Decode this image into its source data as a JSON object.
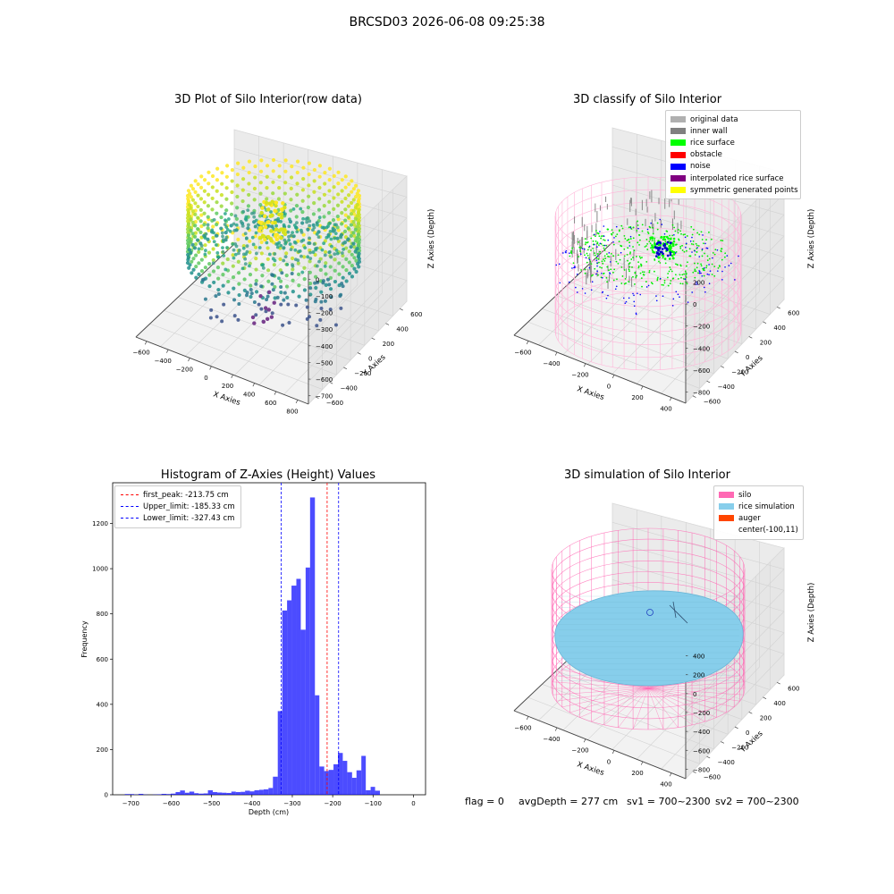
{
  "suptitle": "BRCSD03 2026-06-08 09:25:38",
  "footer": {
    "flag": "flag = 0",
    "avgDepth": "avgDepth = 277 cm",
    "sv1": "sv1 = 700~2300",
    "sv2": "sv2 = 700~2300"
  },
  "chart_data": [
    {
      "type": "scatter",
      "projection": "3d",
      "title": "3D Plot of Silo Interior(row data)",
      "xlabel": "X Axies",
      "ylabel": "Y Axies",
      "zlabel": "Z Axies (Depth)",
      "xticks": [
        "−600",
        "−400",
        "−200",
        "0",
        "200",
        "400",
        "600",
        "800"
      ],
      "yticks": [
        "−600",
        "−400",
        "−200",
        "0",
        "200",
        "400",
        "600"
      ],
      "zticks": [
        "0",
        "−100",
        "−200",
        "−300",
        "−400",
        "−500",
        "−600",
        "−700"
      ],
      "colormap": "viridis"
    },
    {
      "type": "scatter",
      "projection": "3d",
      "title": "3D classify of Silo Interior",
      "xlabel": "X Axies",
      "ylabel": "Y Axies",
      "zlabel": "Z Axies (Depth)",
      "xticks": [
        "−600",
        "−400",
        "−200",
        "0",
        "200",
        "400"
      ],
      "yticks": [
        "−600",
        "−400",
        "−200",
        "0",
        "200",
        "400",
        "600"
      ],
      "zticks": [
        "200",
        "0",
        "−200",
        "−400",
        "−600",
        "−800"
      ],
      "legend": [
        {
          "label": "original data",
          "color": "#b0b0b0"
        },
        {
          "label": "inner wall",
          "color": "#808080"
        },
        {
          "label": "rice surface",
          "color": "#00ff00"
        },
        {
          "label": "obstacle",
          "color": "#ff0000"
        },
        {
          "label": "noise",
          "color": "#0000ff"
        },
        {
          "label": "interpolated rice surface",
          "color": "#800080"
        },
        {
          "label": "symmetric generated points",
          "color": "#ffff00"
        }
      ],
      "legend_position": "upper right",
      "wireframe_color": "#ffb6d9"
    },
    {
      "type": "bar",
      "title": "Histogram of Z-Axies (Height) Values",
      "xlabel": "Depth (cm)",
      "ylabel": "Frequency",
      "xlim": [
        -745,
        30
      ],
      "ylim": [
        0,
        1380
      ],
      "xticks": [
        -700,
        -600,
        -500,
        -400,
        -300,
        -200,
        -100,
        0
      ],
      "xtick_labels": [
        "−700",
        "−600",
        "−500",
        "−400",
        "−300",
        "−200",
        "−100",
        "0"
      ],
      "yticks": [
        0,
        200,
        400,
        600,
        800,
        1000,
        1200
      ],
      "bar_color": "#0000ff",
      "bins": [
        {
          "x0": -715,
          "x1": -704,
          "count": 3
        },
        {
          "x0": -704,
          "x1": -692,
          "count": 3
        },
        {
          "x0": -692,
          "x1": -681,
          "count": 1
        },
        {
          "x0": -681,
          "x1": -669,
          "count": 4
        },
        {
          "x0": -669,
          "x1": -658,
          "count": 1
        },
        {
          "x0": -658,
          "x1": -646,
          "count": 0
        },
        {
          "x0": -646,
          "x1": -635,
          "count": 1
        },
        {
          "x0": -635,
          "x1": -624,
          "count": 2
        },
        {
          "x0": -624,
          "x1": -612,
          "count": 4
        },
        {
          "x0": -612,
          "x1": -601,
          "count": 3
        },
        {
          "x0": -601,
          "x1": -589,
          "count": 5
        },
        {
          "x0": -589,
          "x1": -578,
          "count": 12
        },
        {
          "x0": -578,
          "x1": -566,
          "count": 19
        },
        {
          "x0": -566,
          "x1": -555,
          "count": 9
        },
        {
          "x0": -555,
          "x1": -543,
          "count": 14
        },
        {
          "x0": -543,
          "x1": -532,
          "count": 7
        },
        {
          "x0": -532,
          "x1": -520,
          "count": 5
        },
        {
          "x0": -520,
          "x1": -509,
          "count": 6
        },
        {
          "x0": -509,
          "x1": -497,
          "count": 20
        },
        {
          "x0": -497,
          "x1": -486,
          "count": 12
        },
        {
          "x0": -486,
          "x1": -474,
          "count": 10
        },
        {
          "x0": -474,
          "x1": -463,
          "count": 9
        },
        {
          "x0": -463,
          "x1": -451,
          "count": 8
        },
        {
          "x0": -451,
          "x1": -440,
          "count": 14
        },
        {
          "x0": -440,
          "x1": -428,
          "count": 12
        },
        {
          "x0": -428,
          "x1": -417,
          "count": 13
        },
        {
          "x0": -417,
          "x1": -405,
          "count": 18
        },
        {
          "x0": -405,
          "x1": -394,
          "count": 15
        },
        {
          "x0": -394,
          "x1": -382,
          "count": 20
        },
        {
          "x0": -382,
          "x1": -371,
          "count": 22
        },
        {
          "x0": -371,
          "x1": -359,
          "count": 24
        },
        {
          "x0": -359,
          "x1": -348,
          "count": 30
        },
        {
          "x0": -348,
          "x1": -336,
          "count": 80
        },
        {
          "x0": -336,
          "x1": -325,
          "count": 370
        },
        {
          "x0": -325,
          "x1": -313,
          "count": 815
        },
        {
          "x0": -313,
          "x1": -302,
          "count": 860
        },
        {
          "x0": -302,
          "x1": -290,
          "count": 925
        },
        {
          "x0": -290,
          "x1": -279,
          "count": 955
        },
        {
          "x0": -279,
          "x1": -267,
          "count": 730
        },
        {
          "x0": -267,
          "x1": -256,
          "count": 1005
        },
        {
          "x0": -256,
          "x1": -244,
          "count": 1315
        },
        {
          "x0": -244,
          "x1": -233,
          "count": 440
        },
        {
          "x0": -233,
          "x1": -221,
          "count": 125
        },
        {
          "x0": -221,
          "x1": -210,
          "count": 105
        },
        {
          "x0": -210,
          "x1": -198,
          "count": 110
        },
        {
          "x0": -198,
          "x1": -187,
          "count": 135
        },
        {
          "x0": -187,
          "x1": -175,
          "count": 185
        },
        {
          "x0": -175,
          "x1": -164,
          "count": 150
        },
        {
          "x0": -164,
          "x1": -152,
          "count": 100
        },
        {
          "x0": -152,
          "x1": -141,
          "count": 75
        },
        {
          "x0": -141,
          "x1": -129,
          "count": 108
        },
        {
          "x0": -129,
          "x1": -118,
          "count": 172
        },
        {
          "x0": -118,
          "x1": -106,
          "count": 20
        },
        {
          "x0": -106,
          "x1": -95,
          "count": 35
        },
        {
          "x0": -95,
          "x1": -83,
          "count": 18
        }
      ],
      "lines": [
        {
          "label": "first_peak: -213.75 cm",
          "x": -213.75,
          "color": "#ff0000"
        },
        {
          "label": "Upper_limit: -185.33 cm",
          "x": -185.33,
          "color": "#0000ff"
        },
        {
          "label": "Lower_limit: -327.43 cm",
          "x": -327.43,
          "color": "#0000ff"
        }
      ],
      "legend_position": "upper left"
    },
    {
      "type": "scatter",
      "projection": "3d",
      "title": "3D simulation of Silo Interior",
      "xlabel": "X Axies",
      "ylabel": "Y Axies",
      "zlabel": "Z Axies (Depth)",
      "xticks": [
        "−600",
        "−400",
        "−200",
        "0",
        "200",
        "400"
      ],
      "yticks": [
        "−600",
        "−400",
        "−200",
        "0",
        "200",
        "400",
        "600"
      ],
      "zticks": [
        "400",
        "200",
        "0",
        "−200",
        "−400",
        "−600",
        "−800"
      ],
      "legend": [
        {
          "label": "silo",
          "color": "#ff69b4"
        },
        {
          "label": "rice simulation",
          "color": "#87ceeb"
        },
        {
          "label": "auger",
          "color": "#ff4500"
        },
        {
          "label": "center(-100,11)",
          "color": ""
        }
      ],
      "legend_position": "upper right"
    }
  ]
}
